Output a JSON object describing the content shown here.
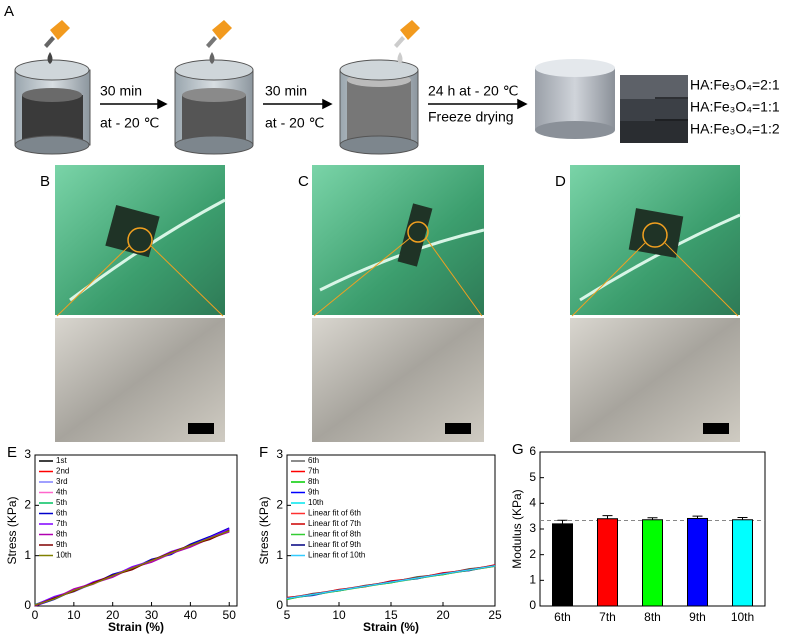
{
  "panel_labels": [
    "A",
    "B",
    "C",
    "D"
  ],
  "panel_a": {
    "steps": [
      {
        "line1": "30 min",
        "line2": "at - 20 ℃"
      },
      {
        "line1": "30 min",
        "line2": "at - 20 ℃"
      },
      {
        "line1": "24 h at - 20 ℃",
        "line2": "Freeze drying"
      }
    ],
    "ratios": [
      "HA:Fe₃O₄=2:1",
      "HA:Fe₃O₄=1:1",
      "HA:Fe₃O₄=1:2"
    ]
  },
  "chart_data": [
    {
      "type": "line",
      "panel_label": "E",
      "xlabel": "Strain (%)",
      "ylabel": "Stress (KPa)",
      "xlim": [
        0,
        52
      ],
      "ylim": [
        0,
        3
      ],
      "xticks": [
        0,
        10,
        20,
        30,
        40,
        50
      ],
      "yticks": [
        0,
        1,
        2,
        3
      ],
      "x": [
        0,
        5,
        10,
        15,
        20,
        25,
        30,
        35,
        40,
        45,
        50
      ],
      "series": [
        {
          "name": "1st",
          "color": "#000000",
          "values": [
            0,
            0.16,
            0.3,
            0.44,
            0.6,
            0.74,
            0.9,
            1.04,
            1.2,
            1.34,
            1.5
          ]
        },
        {
          "name": "2nd",
          "color": "#ff0000",
          "values": [
            0.02,
            0.14,
            0.32,
            0.46,
            0.58,
            0.76,
            0.88,
            1.06,
            1.18,
            1.36,
            1.48
          ]
        },
        {
          "name": "3rd",
          "color": "#8080ff",
          "values": [
            0.01,
            0.18,
            0.28,
            0.45,
            0.62,
            0.73,
            0.92,
            1.03,
            1.22,
            1.33,
            1.52
          ]
        },
        {
          "name": "4th",
          "color": "#ff66cc",
          "values": [
            0,
            0.15,
            0.33,
            0.43,
            0.61,
            0.77,
            0.89,
            1.07,
            1.19,
            1.37,
            1.49
          ]
        },
        {
          "name": "5th",
          "color": "#00c060",
          "values": [
            0.03,
            0.17,
            0.29,
            0.47,
            0.59,
            0.75,
            0.91,
            1.05,
            1.21,
            1.35,
            1.51
          ]
        },
        {
          "name": "6th",
          "color": "#0000cc",
          "values": [
            0,
            0.13,
            0.31,
            0.44,
            0.63,
            0.74,
            0.93,
            1.02,
            1.23,
            1.38,
            1.55
          ]
        },
        {
          "name": "7th",
          "color": "#8000ff",
          "values": [
            0.02,
            0.19,
            0.3,
            0.48,
            0.6,
            0.78,
            0.9,
            1.08,
            1.2,
            1.36,
            1.53
          ]
        },
        {
          "name": "8th",
          "color": "#b000b0",
          "values": [
            0,
            0.15,
            0.34,
            0.45,
            0.57,
            0.76,
            0.87,
            1.04,
            1.17,
            1.34,
            1.47
          ]
        },
        {
          "name": "9th",
          "color": "#800000",
          "values": [
            0.01,
            0.16,
            0.29,
            0.46,
            0.61,
            0.72,
            0.91,
            1.06,
            1.21,
            1.32,
            1.5
          ]
        },
        {
          "name": "10th",
          "color": "#808000",
          "values": [
            0.02,
            0.14,
            0.31,
            0.44,
            0.6,
            0.75,
            0.9,
            1.05,
            1.2,
            1.35,
            1.49
          ]
        }
      ]
    },
    {
      "type": "line",
      "panel_label": "F",
      "xlabel": "Strain (%)",
      "ylabel": "Stress (KPa)",
      "xlim": [
        5,
        25
      ],
      "ylim": [
        0,
        3
      ],
      "xticks": [
        5,
        10,
        15,
        20,
        25
      ],
      "yticks": [
        0,
        1,
        2,
        3
      ],
      "series": [
        {
          "name": "6th",
          "color": "#666666",
          "x": [
            5,
            7.5,
            10,
            12.5,
            15,
            17.5,
            20,
            22.5,
            25
          ],
          "values": [
            0.14,
            0.25,
            0.3,
            0.41,
            0.47,
            0.58,
            0.63,
            0.74,
            0.79
          ]
        },
        {
          "name": "7th",
          "color": "#ff0000",
          "x": [
            5,
            7.5,
            10,
            12.5,
            15,
            17.5,
            20,
            22.5,
            25
          ],
          "values": [
            0.17,
            0.22,
            0.33,
            0.38,
            0.5,
            0.55,
            0.66,
            0.71,
            0.82
          ]
        },
        {
          "name": "8th",
          "color": "#00cc00",
          "x": [
            5,
            7.5,
            10,
            12.5,
            15,
            17.5,
            20,
            22.5,
            25
          ],
          "values": [
            0.13,
            0.24,
            0.3,
            0.4,
            0.46,
            0.57,
            0.62,
            0.73,
            0.8
          ]
        },
        {
          "name": "9th",
          "color": "#0000ff",
          "x": [
            5,
            7.5,
            10,
            12.5,
            15,
            17.5,
            20,
            22.5,
            25
          ],
          "values": [
            0.16,
            0.21,
            0.32,
            0.39,
            0.49,
            0.54,
            0.65,
            0.7,
            0.81
          ]
        },
        {
          "name": "10th",
          "color": "#00e5ee",
          "x": [
            5,
            7.5,
            10,
            12.5,
            15,
            17.5,
            20,
            22.5,
            25
          ],
          "values": [
            0.15,
            0.23,
            0.31,
            0.4,
            0.48,
            0.56,
            0.64,
            0.72,
            0.8
          ]
        },
        {
          "name": "Linear fit of 6th",
          "color": "#ff3030",
          "x": [
            5,
            25
          ],
          "values": [
            0.15,
            0.79
          ]
        },
        {
          "name": "Linear fit of 7th",
          "color": "#cc0000",
          "x": [
            5,
            25
          ],
          "values": [
            0.16,
            0.81
          ]
        },
        {
          "name": "Linear fit of 8th",
          "color": "#33cc33",
          "x": [
            5,
            25
          ],
          "values": [
            0.14,
            0.79
          ]
        },
        {
          "name": "Linear fit of 9th",
          "color": "#000080",
          "x": [
            5,
            25
          ],
          "values": [
            0.15,
            0.8
          ]
        },
        {
          "name": "Linear fit of 10th",
          "color": "#33ccff",
          "x": [
            5,
            25
          ],
          "values": [
            0.15,
            0.8
          ]
        }
      ]
    },
    {
      "type": "bar",
      "panel_label": "G",
      "ylabel": "Modulus (KPa)",
      "ylim": [
        0,
        6
      ],
      "yticks": [
        0,
        1,
        2,
        3,
        4,
        5,
        6
      ],
      "categories": [
        "6th",
        "7th",
        "8th",
        "9th",
        "10th"
      ],
      "values": [
        3.2,
        3.4,
        3.36,
        3.41,
        3.36
      ],
      "errors": [
        0.14,
        0.12,
        0.08,
        0.09,
        0.09
      ],
      "colors": [
        "#000000",
        "#ff0000",
        "#00ff00",
        "#0000ff",
        "#00ffff"
      ],
      "ref_line": 3.33
    }
  ]
}
